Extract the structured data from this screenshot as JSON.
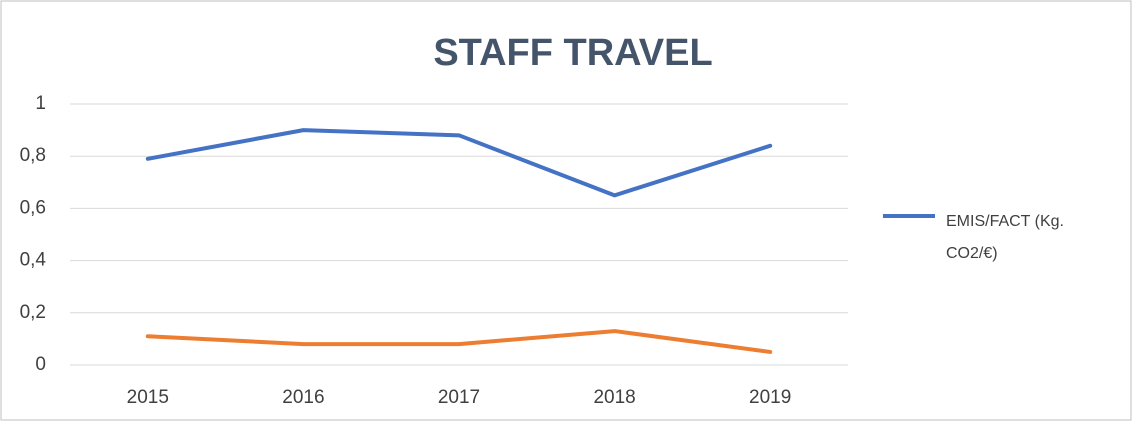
{
  "chart_data": {
    "type": "line",
    "title": "STAFF TRAVEL",
    "categories": [
      "2015",
      "2016",
      "2017",
      "2018",
      "2019"
    ],
    "series": [
      {
        "name": "EMIS/FACT (Kg. CO2/€)",
        "color": "#4472c4",
        "values": [
          0.79,
          0.9,
          0.88,
          0.65,
          0.84
        ]
      },
      {
        "color": "#ed7d31",
        "values": [
          0.11,
          0.08,
          0.08,
          0.13,
          0.05
        ]
      }
    ],
    "ylim": [
      0,
      1
    ],
    "yticks": [
      0,
      {
        "value": 0.2,
        "label": "0,2"
      },
      {
        "value": 0.4,
        "label": "0,4"
      },
      {
        "value": 0.6,
        "label": "0,6"
      },
      {
        "value": 0.8,
        "label": "0,8"
      },
      1
    ],
    "grid": true,
    "legend": "right"
  }
}
